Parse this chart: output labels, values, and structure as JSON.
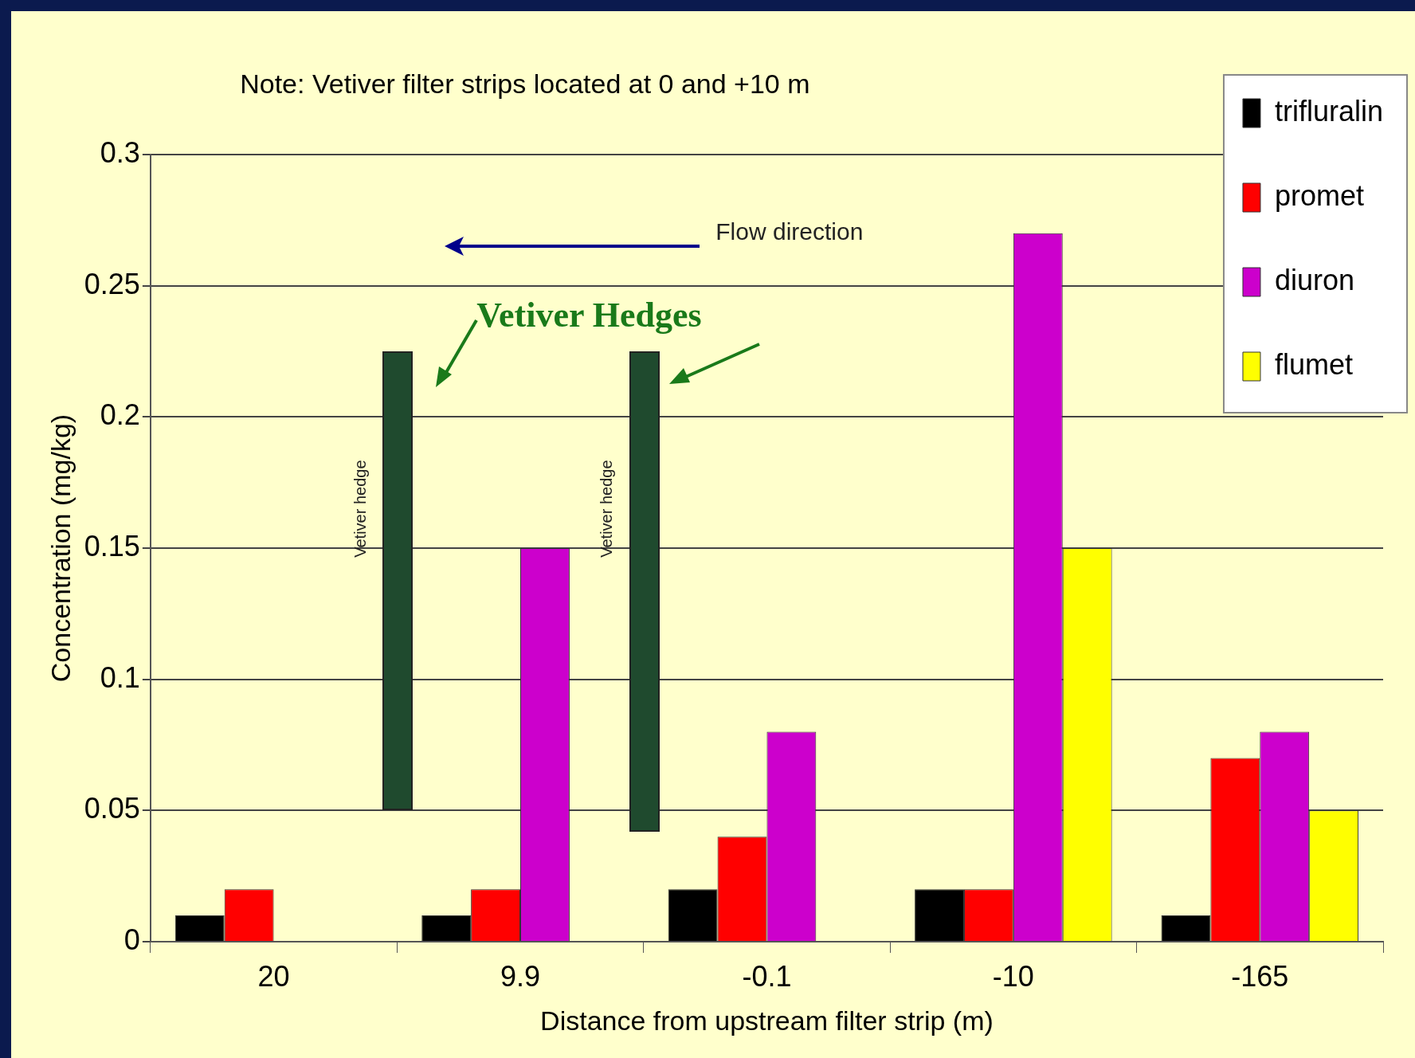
{
  "chart_data": {
    "type": "bar",
    "xlabel": "Distance from upstream filter strip (m)",
    "ylabel": "Concentration (mg/kg)",
    "categories": [
      "20",
      "9.9",
      "-0.1",
      "-10",
      "-165"
    ],
    "series": [
      {
        "name": "trifluralin",
        "color": "#000000",
        "values": [
          0.01,
          0.01,
          0.02,
          0.02,
          0.01
        ]
      },
      {
        "name": "promet",
        "color": "#ff0000",
        "values": [
          0.02,
          0.02,
          0.04,
          0.02,
          0.07
        ]
      },
      {
        "name": "diuron",
        "color": "#cc00cc",
        "values": [
          null,
          0.15,
          0.08,
          0.27,
          0.08
        ]
      },
      {
        "name": "flumet",
        "color": "#ffff00",
        "values": [
          null,
          null,
          null,
          0.15,
          0.05
        ]
      }
    ],
    "ylim": [
      0,
      0.3
    ],
    "yticks": [
      0,
      0.05,
      0.1,
      0.15,
      0.2,
      0.25,
      0.3
    ],
    "grid": "y",
    "legend": "top right",
    "annotations": [
      "Note: Vetiver filter strips located at 0 and +10 m",
      "Flow direction",
      "Vetiver Hedges",
      "Vetiver hedge",
      "Vetiver hedge"
    ]
  }
}
